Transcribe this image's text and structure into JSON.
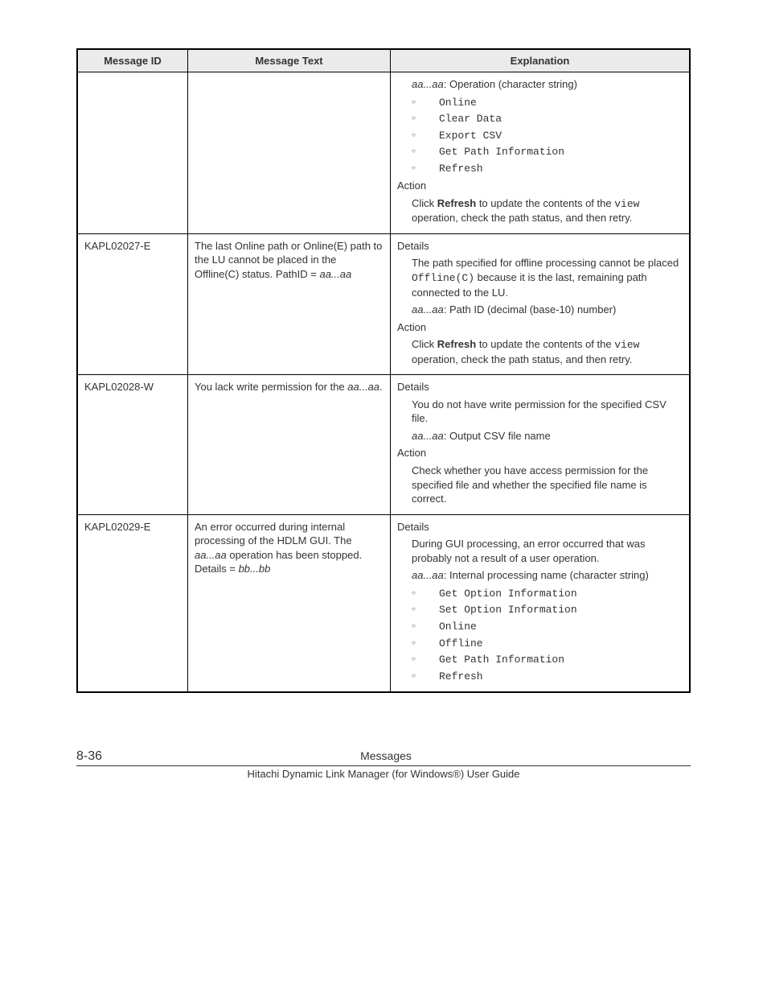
{
  "table": {
    "headers": {
      "id": "Message ID",
      "text": "Message Text",
      "expl": "Explanation"
    },
    "rows": [
      {
        "id": "",
        "text": "",
        "expl": {
          "prelude_ital": "aa...aa",
          "prelude_rest": ": Operation (character string)",
          "ops": [
            "Online",
            "Clear Data",
            "Export CSV",
            "Get Path Information",
            "Refresh"
          ],
          "action_label": "Action",
          "action_pre": "Click ",
          "action_bold": "Refresh",
          "action_post1": " to update the contents of the ",
          "action_code": "view",
          "action_post2": " operation, check the path status, and then retry."
        }
      },
      {
        "id": "KAPL02027-E",
        "text_pre": "The last Online path or Online(E) path to the LU cannot be placed in the Offline(C) status. PathID = ",
        "text_ital": "aa...aa",
        "expl": {
          "details_label": "Details",
          "d1_pre": "The path specified for offline processing cannot be placed ",
          "d1_code": "Offline(C)",
          "d1_post": " because it is the last, remaining path connected to the LU.",
          "d2_ital": "aa...aa",
          "d2_post": ": Path ID (decimal (base-10) number)",
          "action_label": "Action",
          "action_pre": "Click ",
          "action_bold": "Refresh",
          "action_post1": " to update the contents of the ",
          "action_code": "view",
          "action_post2": " operation, check the path status, and then retry."
        }
      },
      {
        "id": "KAPL02028-W",
        "text_pre": "You lack write permission for the ",
        "text_ital": "aa...aa",
        "text_post": ".",
        "expl": {
          "details_label": "Details",
          "d1": "You do not have write permission for the specified CSV file.",
          "d2_ital": "aa...aa",
          "d2_post": ": Output CSV file name",
          "action_label": "Action",
          "action_text": "Check whether you have access permission for the specified file and whether the specified file name is correct."
        }
      },
      {
        "id": "KAPL02029-E",
        "text_pre": "An error occurred during internal processing of the HDLM GUI. The ",
        "text_ital1": "aa...aa",
        "text_mid": " operation has been stopped. Details = ",
        "text_ital2": "bb...bb",
        "expl": {
          "details_label": "Details",
          "d1": "During GUI processing, an error occurred that was probably not a result of a user operation.",
          "d2_ital": "aa...aa",
          "d2_post": ": Internal processing name (character string)",
          "ops": [
            "Get Option Information",
            "Set Option Information",
            "Online",
            "Offline",
            "Get Path Information",
            "Refresh"
          ]
        }
      }
    ]
  },
  "footer": {
    "page": "8-36",
    "title": "Messages",
    "sub": "Hitachi Dynamic Link Manager (for Windows®) User Guide"
  }
}
